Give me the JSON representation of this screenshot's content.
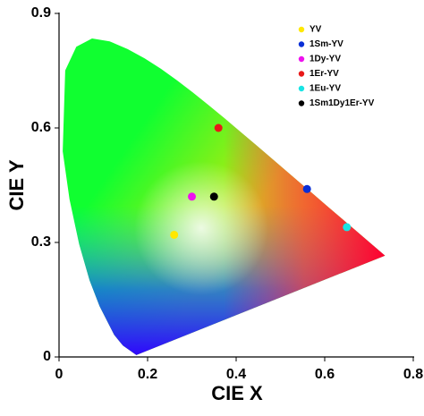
{
  "chart_data": {
    "type": "scatter",
    "x_label": "CIE X",
    "y_label": "CIE Y",
    "xlim": [
      0,
      0.8
    ],
    "xticks": [
      0,
      0.2,
      0.4,
      0.6,
      0.8
    ],
    "ylim": [
      0,
      0.9
    ],
    "yticks": [
      0,
      0.3,
      0.6,
      0.9
    ],
    "legend": "upper right",
    "series": [
      {
        "name": "YV",
        "color": "#ffe800",
        "x": [
          0.26
        ],
        "values": [
          0.32
        ]
      },
      {
        "name": "1Sm-YV",
        "color": "#0a2fd6",
        "x": [
          0.56
        ],
        "values": [
          0.44
        ]
      },
      {
        "name": "1Dy-YV",
        "color": "#ee11ee",
        "x": [
          0.3
        ],
        "values": [
          0.42
        ]
      },
      {
        "name": "1Er-YV",
        "color": "#e81818",
        "x": [
          0.36
        ],
        "values": [
          0.6
        ]
      },
      {
        "name": "1Eu-YV",
        "color": "#18e4e4",
        "x": [
          0.65
        ],
        "values": [
          0.34
        ]
      },
      {
        "name": "1Sm1Dy1Er-YV",
        "color": "#000000",
        "x": [
          0.35
        ],
        "values": [
          0.42
        ]
      }
    ]
  }
}
